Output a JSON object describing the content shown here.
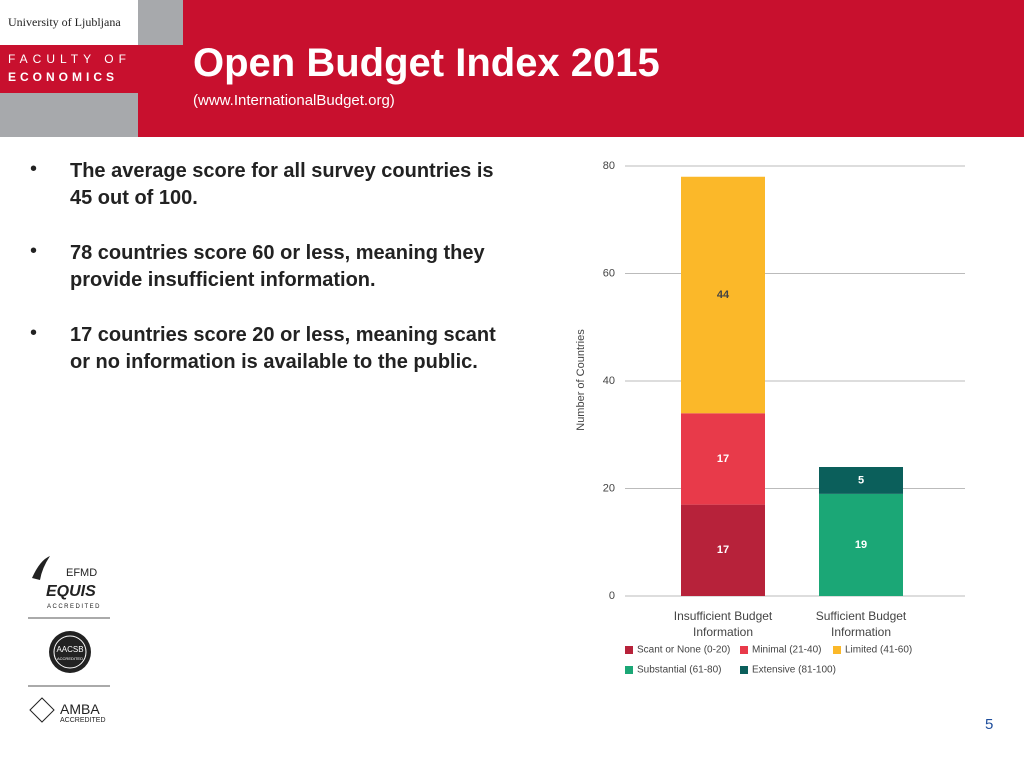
{
  "header": {
    "university": "University of Ljubljana",
    "faculty_line1": "FACULTY OF",
    "faculty_line2": "ECONOMICS",
    "title": "Open Budget Index 2015",
    "subtitle": "(www.InternationalBudget.org)"
  },
  "bullets": [
    "The average score for all survey countries is 45 out of 100.",
    "78 countries score 60 or less, meaning they provide insufficient information.",
    "17 countries score 20 or less, meaning scant or no information is available to the public."
  ],
  "logos": {
    "efmd": "EFMD",
    "equis": "EQUIS",
    "equis_accredited": "ACCREDITED",
    "aacsb": "AACSB",
    "aacsb_accredited": "ACCREDITED",
    "amba": "AMBA",
    "amba_accredited": "ACCREDITED"
  },
  "page_number": "5",
  "chart_data": {
    "type": "stacked_bar",
    "ylabel": "Number of Countries",
    "categories": [
      "Insufficient Budget Information",
      "Sufficient Budget Information"
    ],
    "series": [
      {
        "name": "Scant or None (0-20)",
        "color": "#b7223a",
        "values": [
          17,
          null
        ]
      },
      {
        "name": "Minimal (21-40)",
        "color": "#e83a4a",
        "values": [
          17,
          null
        ]
      },
      {
        "name": "Limited (41-60)",
        "color": "#fbb829",
        "values": [
          44,
          null
        ]
      },
      {
        "name": "Substantial (61-80)",
        "color": "#1ba776",
        "values": [
          null,
          19
        ]
      },
      {
        "name": "Extensive (81-100)",
        "color": "#0b5f5b",
        "values": [
          null,
          5
        ]
      }
    ],
    "ylim": [
      0,
      80
    ],
    "yticks": [
      0,
      20,
      40,
      60,
      80
    ],
    "grid": true
  }
}
